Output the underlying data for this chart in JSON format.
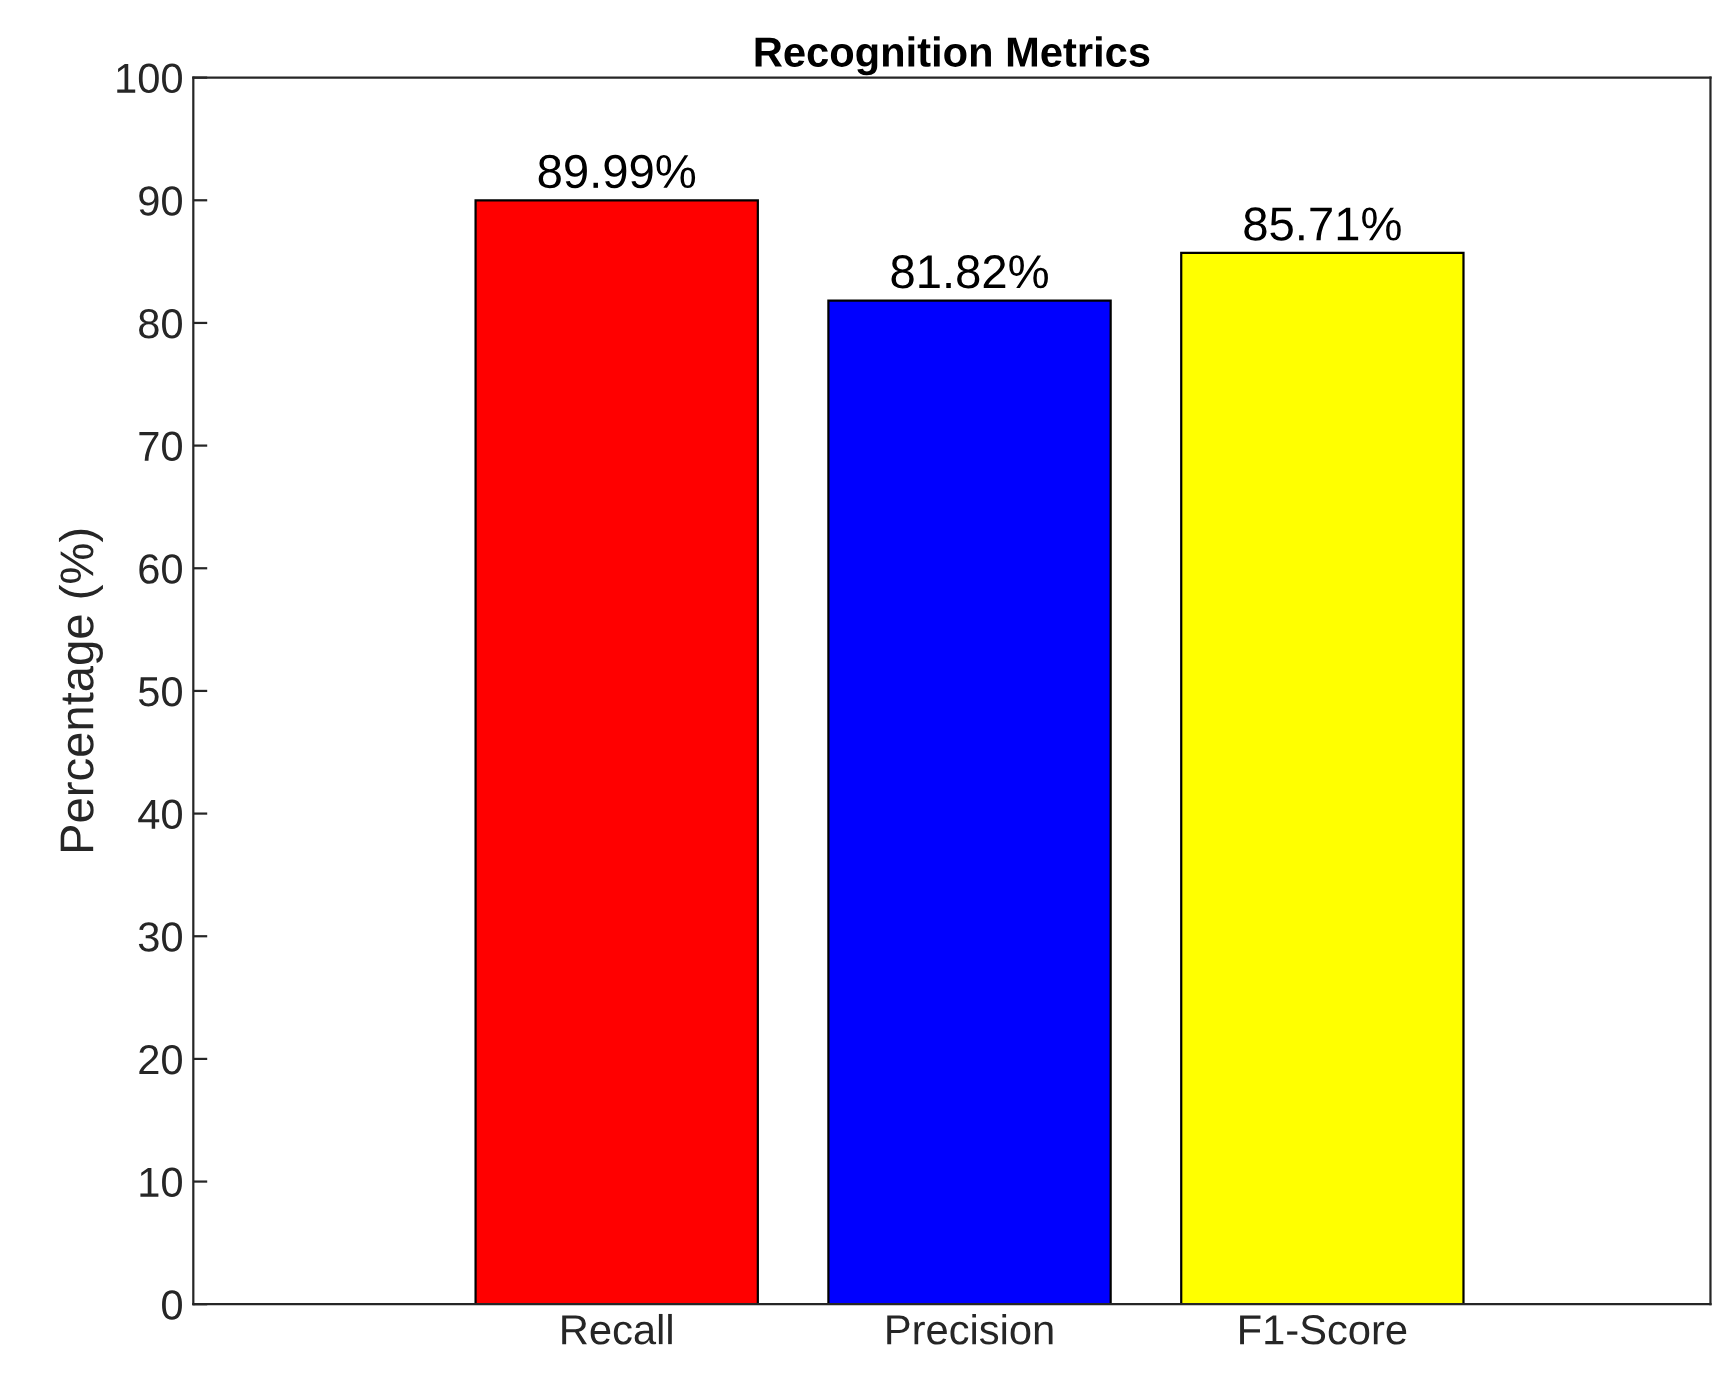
{
  "chart_data": {
    "type": "bar",
    "title": "Recognition Metrics",
    "ylabel": "Percentage (%)",
    "categories": [
      "Recall",
      "Precision",
      "F1-Score"
    ],
    "values": [
      89.99,
      81.82,
      85.71
    ],
    "colors": [
      "#ff0000",
      "#0000ff",
      "#ffff00"
    ],
    "value_labels": [
      "89.99%",
      "81.82%",
      "85.71%"
    ],
    "ylim": [
      0,
      100
    ],
    "yticks": [
      0,
      10,
      20,
      30,
      40,
      50,
      60,
      70,
      80,
      90,
      100
    ],
    "grid": false,
    "legend": false
  }
}
